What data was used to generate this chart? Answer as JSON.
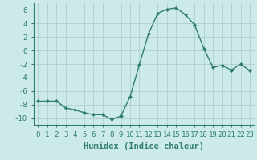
{
  "x": [
    0,
    1,
    2,
    3,
    4,
    5,
    6,
    7,
    8,
    9,
    10,
    11,
    12,
    13,
    14,
    15,
    16,
    17,
    18,
    19,
    20,
    21,
    22,
    23
  ],
  "y": [
    -7.5,
    -7.5,
    -7.5,
    -8.5,
    -8.8,
    -9.2,
    -9.5,
    -9.5,
    -10.2,
    -9.7,
    -6.8,
    -2.1,
    2.5,
    5.5,
    6.1,
    6.3,
    5.3,
    3.8,
    0.3,
    -2.5,
    -2.2,
    -2.9,
    -2.0,
    -3.0
  ],
  "line_color": "#2e7d6e",
  "marker_color": "#2e7d6e",
  "background_color": "#cdeaea",
  "grid_color": "#aecfcf",
  "xlabel": "Humidex (Indice chaleur)",
  "xlim": [
    -0.5,
    23.5
  ],
  "ylim": [
    -11,
    7
  ],
  "yticks": [
    -10,
    -8,
    -6,
    -4,
    -2,
    0,
    2,
    4,
    6
  ],
  "xtick_labels": [
    "0",
    "1",
    "2",
    "3",
    "4",
    "5",
    "6",
    "7",
    "8",
    "9",
    "10",
    "11",
    "12",
    "13",
    "14",
    "15",
    "16",
    "17",
    "18",
    "19",
    "20",
    "21",
    "22",
    "23"
  ],
  "xlabel_fontsize": 7.5,
  "tick_fontsize": 6.5
}
